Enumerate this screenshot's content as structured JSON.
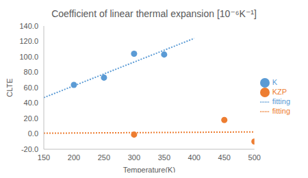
{
  "chart_data": {
    "type": "scatter",
    "title": "Coefficient of linear thermal expansion [10⁻⁶K⁻¹]",
    "x_label": "Temperature(K)",
    "y_label": "CLTE",
    "xlim": [
      150,
      500
    ],
    "xticks": [
      150,
      200,
      250,
      300,
      350,
      400,
      450,
      500
    ],
    "ylim": [
      -20,
      140
    ],
    "yticks": [
      {
        "value": -20,
        "label": "-20.0"
      },
      {
        "value": 0,
        "label": "0.0"
      },
      {
        "value": 20,
        "label": "20.0"
      },
      {
        "value": 40,
        "label": "40.0"
      },
      {
        "value": 60,
        "label": "60.0"
      },
      {
        "value": 80,
        "label": "80.0"
      },
      {
        "value": 100,
        "label": "100.0"
      },
      {
        "value": 120,
        "label": "120.0"
      },
      {
        "value": 140,
        "label": "140.0"
      }
    ],
    "grid": false,
    "legend": "right",
    "series": [
      {
        "name": "K",
        "type": "scatter",
        "marker": "circle",
        "color": "#5b9bd5",
        "x": [
          200,
          250,
          300,
          350
        ],
        "values": [
          63.5,
          73,
          104,
          103
        ]
      },
      {
        "name": "KZP",
        "type": "scatter",
        "marker": "circle",
        "color": "#ed7d31",
        "x": [
          300,
          450,
          500
        ],
        "values": [
          -1,
          18,
          -10
        ]
      },
      {
        "name": "fitting",
        "type": "line",
        "line_style": "dotted",
        "color": "#5b9bd5",
        "x": [
          150,
          400
        ],
        "values": [
          47,
          124
        ]
      },
      {
        "name": "fitting",
        "type": "line",
        "line_style": "dotted",
        "color": "#ed7d31",
        "x": [
          150,
          500
        ],
        "values": [
          0.8,
          2.5
        ]
      }
    ]
  }
}
